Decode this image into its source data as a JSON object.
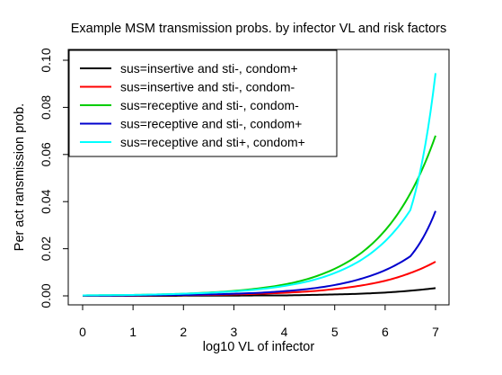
{
  "chart_data": {
    "type": "line",
    "title": "Example MSM transmission probs. by infector VL and risk factors",
    "xlabel": "log10 VL of infector",
    "ylabel": "Per act ransmission prob.",
    "xlim": [
      0,
      7
    ],
    "ylim": [
      0,
      0.1
    ],
    "x_ticks": [
      "0",
      "1",
      "2",
      "3",
      "4",
      "5",
      "6",
      "7"
    ],
    "y_ticks": [
      "0.00",
      "0.02",
      "0.04",
      "0.06",
      "0.08",
      "0.10"
    ],
    "grid": false,
    "legend_position": "top-left",
    "x": [
      0,
      0.5,
      1,
      1.5,
      2,
      2.5,
      3,
      3.5,
      4,
      4.5,
      5,
      5.5,
      6,
      6.5,
      7
    ],
    "series": [
      {
        "name": "sus=insertive and sti-, condom+",
        "color": "#000000",
        "values": [
          0.0,
          0.0,
          0.0,
          0.0,
          0.0001,
          0.0001,
          0.0001,
          0.0002,
          0.0002,
          0.0004,
          0.0006,
          0.0009,
          0.0014,
          0.0022,
          0.0033
        ]
      },
      {
        "name": "sus=insertive and sti-, condom-",
        "color": "#ff0000",
        "values": [
          0.0001,
          0.0001,
          0.0001,
          0.0002,
          0.0003,
          0.0004,
          0.0006,
          0.0009,
          0.0013,
          0.0019,
          0.0029,
          0.0043,
          0.0064,
          0.0097,
          0.0145
        ]
      },
      {
        "name": "sus=receptive and sti-, condom-",
        "color": "#00cd00",
        "values": [
          0.0002,
          0.0003,
          0.0004,
          0.0006,
          0.0009,
          0.0014,
          0.0021,
          0.0032,
          0.0048,
          0.0074,
          0.0115,
          0.0178,
          0.0278,
          0.0435,
          0.068
        ]
      },
      {
        "name": "sus=receptive and sti-, condom+",
        "color": "#0000cd",
        "values": [
          0.0001,
          0.0001,
          0.0002,
          0.0003,
          0.0004,
          0.0006,
          0.0009,
          0.0013,
          0.002,
          0.003,
          0.0046,
          0.0071,
          0.0109,
          0.0168,
          0.036
        ]
      },
      {
        "name": "sus=receptive and sti+, condom+",
        "color": "#00ffff",
        "values": [
          0.0002,
          0.0003,
          0.0004,
          0.0006,
          0.0009,
          0.0013,
          0.0019,
          0.0028,
          0.0042,
          0.0063,
          0.0097,
          0.0149,
          0.0232,
          0.0364,
          0.0945
        ]
      }
    ]
  }
}
